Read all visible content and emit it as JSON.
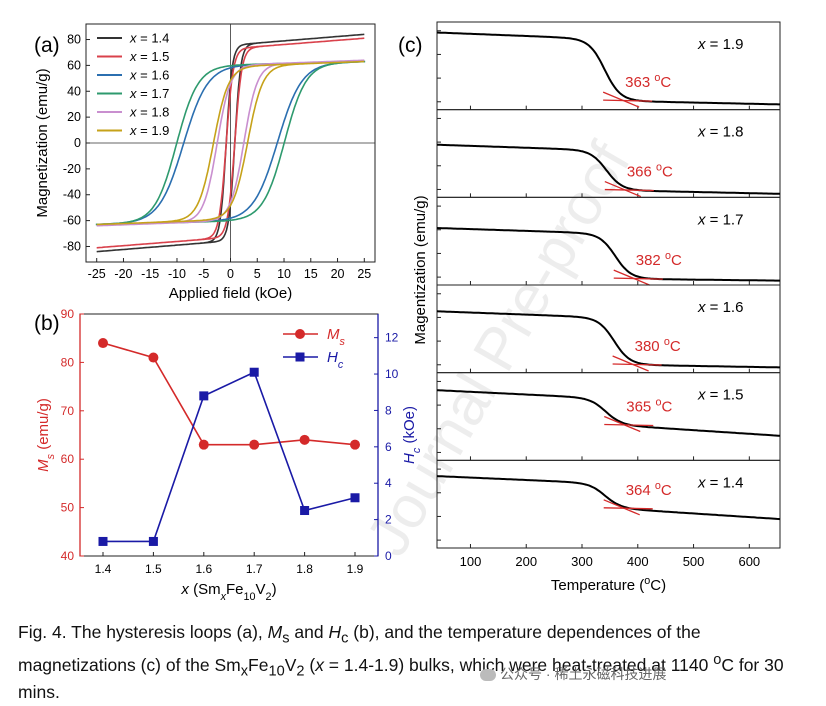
{
  "chart_data": [
    {
      "panel": "(a)",
      "type": "line",
      "xlabel": "Applied field (kOe)",
      "ylabel": "Magnetization (emu/g)",
      "xlim": [
        -27,
        27
      ],
      "ylim": [
        -92,
        92
      ],
      "xticks": [
        -25,
        -20,
        -15,
        -10,
        -5,
        0,
        5,
        10,
        15,
        20,
        25
      ],
      "yticks": [
        -80,
        -60,
        -40,
        -20,
        0,
        20,
        40,
        60,
        80
      ],
      "series": [
        {
          "name": "x = 1.4",
          "color": "#333333",
          "Ms": 84,
          "Hc": 0.8,
          "steep": 1.1,
          "lin": 0.25
        },
        {
          "name": "x = 1.5",
          "color": "#d9414b",
          "Ms": 81,
          "Hc": 0.8,
          "steep": 1.3,
          "lin": 0.25
        },
        {
          "name": "x = 1.6",
          "color": "#2b6fb0",
          "Ms": 63,
          "Hc": 8.8,
          "steep": 4.5,
          "lin": 0.1
        },
        {
          "name": "x = 1.7",
          "color": "#2e9a6e",
          "Ms": 63,
          "Hc": 10.1,
          "steep": 4.0,
          "lin": 0.1
        },
        {
          "name": "x = 1.8",
          "color": "#c98fcf",
          "Ms": 64,
          "Hc": 2.5,
          "steep": 2.5,
          "lin": 0.15
        },
        {
          "name": "x = 1.9",
          "color": "#c6a21a",
          "Ms": 63,
          "Hc": 3.2,
          "steep": 2.8,
          "lin": 0.15
        }
      ]
    },
    {
      "panel": "(b)",
      "type": "line",
      "categories": [
        "1.4",
        "1.5",
        "1.6",
        "1.7",
        "1.8",
        "1.9"
      ],
      "xlabel": "x (SmxFe10V2)",
      "xlabel_parts": {
        "italic": "x",
        "open": " (Sm",
        "sub_x": "x",
        "fe": "Fe",
        "sub_10": "10",
        "v": "V",
        "sub_2": "2",
        "close": ")"
      },
      "ylabel_left": "Ms (emu/g)",
      "ylabel_right": "Hc (kOe)",
      "ylim_left": [
        40,
        90
      ],
      "ylim_right": [
        0,
        13.3
      ],
      "yticks_left": [
        40,
        50,
        60,
        70,
        80,
        90
      ],
      "yticks_right": [
        0,
        2,
        4,
        6,
        8,
        10,
        12
      ],
      "series": [
        {
          "name": "Ms",
          "sym": "M",
          "sub": "s",
          "axis": "left",
          "color": "#d42a2a",
          "marker": "circle",
          "values": [
            84,
            81,
            63,
            63,
            64,
            63
          ]
        },
        {
          "name": "Hc",
          "sym": "H",
          "sub": "c",
          "axis": "right",
          "color": "#1a1aa6",
          "marker": "square",
          "values": [
            0.8,
            0.8,
            8.8,
            10.1,
            2.5,
            3.2
          ]
        }
      ]
    },
    {
      "panel": "(c)",
      "type": "line",
      "xlabel": "Temperature (oC)",
      "xlabel_parts": {
        "pre": "Temperature (",
        "sup": "o",
        "post": "C)"
      },
      "ylabel": "Magentization (emu/g)",
      "xlim": [
        40,
        655
      ],
      "xticks": [
        100,
        200,
        300,
        400,
        500,
        600
      ],
      "line_color": "#000000",
      "tangent_color": "#d42a2a",
      "series": [
        {
          "name": "x = 1.9",
          "curie": 363,
          "curie_label": "363 oC",
          "start": 0.88,
          "pre": 0.8,
          "post": 0.1,
          "end": 0.06
        },
        {
          "name": "x = 1.8",
          "curie": 366,
          "curie_label": "366 oC",
          "start": 0.6,
          "pre": 0.53,
          "post": 0.08,
          "end": 0.04
        },
        {
          "name": "x = 1.7",
          "curie": 382,
          "curie_label": "382 oC",
          "start": 0.65,
          "pre": 0.58,
          "post": 0.07,
          "end": 0.05
        },
        {
          "name": "x = 1.6",
          "curie": 380,
          "curie_label": "380 oC",
          "start": 0.7,
          "pre": 0.62,
          "post": 0.09,
          "end": 0.06
        },
        {
          "name": "x = 1.5",
          "curie": 365,
          "curie_label": "365 oC",
          "start": 0.8,
          "pre": 0.7,
          "post": 0.4,
          "end": 0.28
        },
        {
          "name": "x = 1.4",
          "curie": 364,
          "curie_label": "364 oC",
          "start": 0.82,
          "pre": 0.73,
          "post": 0.45,
          "end": 0.33
        }
      ]
    }
  ],
  "panel_labels": {
    "a": "(a)",
    "b": "(b)",
    "c": "(c)"
  },
  "watermark": "Journal Pre-proof",
  "caption": {
    "t1": "Fig. 4. The hysteresis loops (a), ",
    "ms_sym": "M",
    "ms_sub": "s",
    "t2": " and ",
    "hc_sym": "H",
    "hc_sub": "c",
    "t3": " (b), and the temperature dependences of the magnetizations (c) of the Sm",
    "sub_x": "x",
    "fe": "Fe",
    "sub_10": "10",
    "v": "V",
    "sub_2": "2",
    "t4": " (",
    "x_it": "x",
    "t5": " = 1.4-1.9) bulks, which were heat-treated at 1140 ",
    "sup_o": "o",
    "t6": "C for 30 mins."
  },
  "wechat_tag": "公众号 · 稀土永磁科技进展"
}
